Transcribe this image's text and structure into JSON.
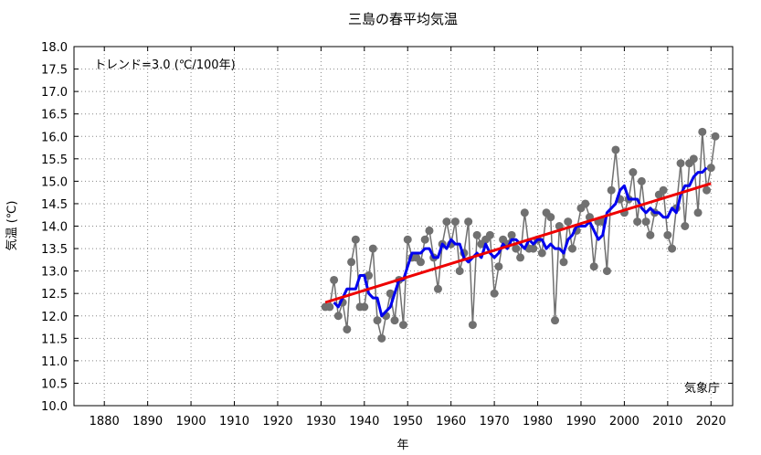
{
  "chart_data": {
    "type": "line",
    "title": "三島の春平均気温",
    "xlabel": "年",
    "ylabel": "気温 (℃)",
    "trend_label": "トレンド=3.0 (℃/100年)",
    "source_label": "気象庁",
    "xlim": [
      1873,
      2025
    ],
    "ylim": [
      10.0,
      18.0
    ],
    "x_ticks": [
      1880,
      1890,
      1900,
      1910,
      1920,
      1930,
      1940,
      1950,
      1960,
      1970,
      1980,
      1990,
      2000,
      2010,
      2020
    ],
    "y_ticks": [
      "10.0",
      "10.5",
      "11.0",
      "11.5",
      "12.0",
      "12.5",
      "13.0",
      "13.5",
      "14.0",
      "14.5",
      "15.0",
      "15.5",
      "16.0",
      "16.5",
      "17.0",
      "17.5",
      "18.0"
    ],
    "grid": true,
    "colors": {
      "annual": "#707070",
      "moving_average": "#0000ee",
      "trend": "#ee0000"
    },
    "series": [
      {
        "role": "annual",
        "x": [
          1931,
          1932,
          1933,
          1934,
          1935,
          1936,
          1937,
          1938,
          1939,
          1940,
          1941,
          1942,
          1943,
          1944,
          1945,
          1946,
          1947,
          1948,
          1949,
          1950,
          1951,
          1952,
          1953,
          1954,
          1955,
          1956,
          1957,
          1958,
          1959,
          1960,
          1961,
          1962,
          1963,
          1964,
          1965,
          1966,
          1967,
          1968,
          1969,
          1970,
          1971,
          1972,
          1973,
          1974,
          1975,
          1976,
          1977,
          1978,
          1979,
          1980,
          1981,
          1982,
          1983,
          1984,
          1985,
          1986,
          1987,
          1988,
          1989,
          1990,
          1991,
          1992,
          1993,
          1994,
          1995,
          1996,
          1997,
          1998,
          1999,
          2000,
          2001,
          2002,
          2003,
          2004,
          2005,
          2006,
          2007,
          2008,
          2009,
          2010,
          2011,
          2012,
          2013,
          2014,
          2015,
          2016,
          2017,
          2018,
          2019,
          2020,
          2021
        ],
        "values": [
          12.2,
          12.2,
          12.8,
          12.0,
          12.3,
          11.7,
          13.2,
          13.7,
          12.2,
          12.2,
          12.9,
          13.5,
          11.9,
          11.5,
          12.0,
          12.5,
          11.9,
          12.8,
          11.8,
          13.7,
          13.3,
          13.3,
          13.2,
          13.7,
          13.9,
          13.3,
          12.6,
          13.6,
          14.1,
          13.6,
          14.1,
          13.0,
          13.4,
          14.1,
          11.8,
          13.8,
          13.6,
          13.7,
          13.8,
          12.5,
          13.1,
          13.7,
          13.6,
          13.8,
          13.5,
          13.3,
          14.3,
          13.5,
          13.5,
          13.7,
          13.4,
          14.3,
          14.2,
          11.9,
          14.0,
          13.2,
          14.1,
          13.5,
          13.9,
          14.4,
          14.5,
          14.2,
          13.1,
          14.1,
          14.1,
          13.0,
          14.8,
          15.7,
          14.6,
          14.3,
          14.6,
          15.2,
          14.1,
          15.0,
          14.1,
          13.8,
          14.3,
          14.7,
          14.8,
          13.8,
          13.5,
          14.4,
          15.4,
          14.0,
          15.4,
          15.5,
          14.3,
          16.1,
          14.8,
          15.3,
          16.0
        ]
      },
      {
        "role": "moving_average",
        "x": [
          1933,
          1934,
          1935,
          1936,
          1937,
          1938,
          1939,
          1940,
          1941,
          1942,
          1943,
          1944,
          1945,
          1946,
          1947,
          1948,
          1949,
          1950,
          1951,
          1952,
          1953,
          1954,
          1955,
          1956,
          1957,
          1958,
          1959,
          1960,
          1961,
          1962,
          1963,
          1964,
          1965,
          1966,
          1967,
          1968,
          1969,
          1970,
          1971,
          1972,
          1973,
          1974,
          1975,
          1976,
          1977,
          1978,
          1979,
          1980,
          1981,
          1982,
          1983,
          1984,
          1985,
          1986,
          1987,
          1988,
          1989,
          1990,
          1991,
          1992,
          1993,
          1994,
          1995,
          1996,
          1997,
          1998,
          1999,
          2000,
          2001,
          2002,
          2003,
          2004,
          2005,
          2006,
          2007,
          2008,
          2009,
          2010,
          2011,
          2012,
          2013,
          2014,
          2015,
          2016,
          2017,
          2018,
          2019
        ],
        "values": [
          12.3,
          12.2,
          12.4,
          12.6,
          12.6,
          12.6,
          12.9,
          12.9,
          12.5,
          12.4,
          12.4,
          12.0,
          12.1,
          12.2,
          12.5,
          12.8,
          12.8,
          13.1,
          13.4,
          13.4,
          13.4,
          13.5,
          13.5,
          13.3,
          13.3,
          13.6,
          13.5,
          13.7,
          13.6,
          13.6,
          13.3,
          13.2,
          13.3,
          13.4,
          13.3,
          13.6,
          13.4,
          13.3,
          13.4,
          13.6,
          13.5,
          13.7,
          13.7,
          13.6,
          13.5,
          13.7,
          13.6,
          13.7,
          13.7,
          13.5,
          13.6,
          13.5,
          13.5,
          13.4,
          13.7,
          13.8,
          14.0,
          14.0,
          14.0,
          14.1,
          13.9,
          13.7,
          13.8,
          14.3,
          14.4,
          14.5,
          14.8,
          14.9,
          14.6,
          14.6,
          14.6,
          14.4,
          14.3,
          14.4,
          14.3,
          14.3,
          14.2,
          14.2,
          14.4,
          14.3,
          14.7,
          14.9,
          14.9,
          15.1,
          15.2,
          15.2,
          15.3
        ]
      },
      {
        "role": "trend",
        "x": [
          1931,
          2020
        ],
        "values": [
          12.3,
          14.95
        ]
      }
    ]
  }
}
